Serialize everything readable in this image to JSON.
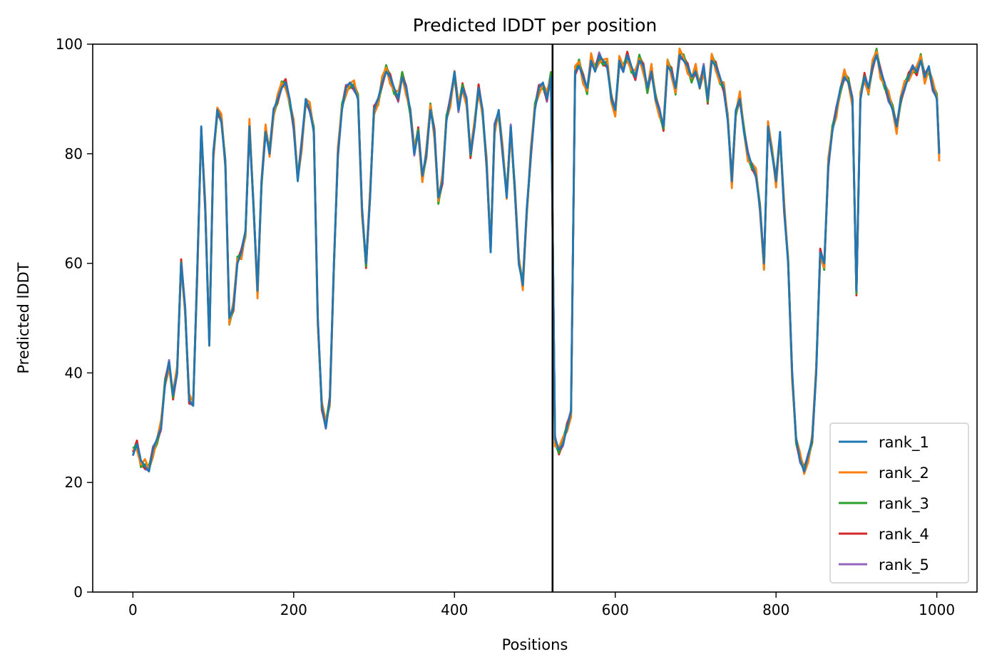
{
  "chart_data": {
    "type": "line",
    "title": "Predicted lDDT per position",
    "xlabel": "Positions",
    "ylabel": "Predicted lDDT",
    "xlim": [
      -50,
      1050
    ],
    "ylim": [
      0,
      100
    ],
    "xticks": [
      0,
      200,
      400,
      600,
      800,
      1000
    ],
    "yticks": [
      0,
      20,
      40,
      60,
      80,
      100
    ],
    "grid": false,
    "legend_position": "lower-right",
    "vertical_line_x": 522,
    "series": [
      {
        "name": "rank_1",
        "color": "#1f77b4",
        "x": [
          0,
          5,
          10,
          15,
          20,
          25,
          30,
          35,
          40,
          45,
          50,
          55,
          60,
          65,
          70,
          75,
          80,
          85,
          90,
          95,
          100,
          105,
          110,
          115,
          120,
          125,
          130,
          135,
          140,
          145,
          150,
          155,
          160,
          165,
          170,
          175,
          180,
          185,
          190,
          195,
          200,
          205,
          210,
          215,
          220,
          225,
          230,
          235,
          240,
          245,
          250,
          255,
          260,
          265,
          270,
          275,
          280,
          285,
          290,
          295,
          300,
          305,
          310,
          315,
          320,
          325,
          330,
          335,
          340,
          345,
          350,
          355,
          360,
          365,
          370,
          375,
          380,
          385,
          390,
          395,
          400,
          405,
          410,
          415,
          420,
          425,
          430,
          435,
          440,
          445,
          450,
          455,
          460,
          465,
          470,
          475,
          480,
          485,
          490,
          495,
          500,
          505,
          510,
          515,
          520,
          525,
          530,
          535,
          540,
          545,
          550,
          555,
          560,
          565,
          570,
          575,
          580,
          585,
          590,
          595,
          600,
          605,
          610,
          615,
          620,
          625,
          630,
          635,
          640,
          645,
          650,
          655,
          660,
          665,
          670,
          675,
          680,
          685,
          690,
          695,
          700,
          705,
          710,
          715,
          720,
          725,
          730,
          735,
          740,
          745,
          750,
          755,
          760,
          765,
          770,
          775,
          780,
          785,
          790,
          795,
          800,
          805,
          810,
          815,
          820,
          825,
          830,
          835,
          840,
          845,
          850,
          855,
          860,
          865,
          870,
          875,
          880,
          885,
          890,
          895,
          900,
          905,
          910,
          915,
          920,
          925,
          930,
          935,
          940,
          945,
          950,
          955,
          960,
          965,
          970,
          975,
          980,
          985,
          990,
          995,
          1000,
          1003
        ],
        "y": [
          25,
          27,
          24,
          23,
          22,
          26,
          28,
          30,
          38,
          42,
          36,
          40,
          60,
          52,
          35,
          34,
          58,
          85,
          70,
          45,
          80,
          88,
          86,
          78,
          50,
          52,
          60,
          62,
          66,
          85,
          70,
          55,
          75,
          84,
          80,
          88,
          90,
          92,
          93,
          90,
          85,
          75,
          82,
          90,
          88,
          84,
          50,
          34,
          30,
          35,
          60,
          80,
          88,
          92,
          93,
          92,
          90,
          70,
          60,
          72,
          88,
          90,
          93,
          95,
          94,
          92,
          90,
          94,
          92,
          88,
          80,
          84,
          76,
          80,
          88,
          84,
          72,
          75,
          86,
          90,
          95,
          88,
          92,
          90,
          80,
          85,
          92,
          88,
          78,
          62,
          85,
          88,
          80,
          72,
          85,
          74,
          60,
          56,
          70,
          80,
          88,
          92,
          93,
          90,
          94,
          28,
          26,
          27,
          30,
          33,
          95,
          96,
          94,
          92,
          97,
          95,
          98,
          97,
          96,
          90,
          88,
          97,
          95,
          98,
          96,
          94,
          97,
          96,
          92,
          95,
          90,
          88,
          85,
          96,
          95,
          92,
          98,
          97,
          96,
          94,
          95,
          92,
          96,
          90,
          97,
          96,
          94,
          92,
          86,
          75,
          88,
          90,
          84,
          80,
          78,
          76,
          70,
          60,
          85,
          80,
          75,
          84,
          70,
          60,
          40,
          28,
          24,
          22,
          25,
          28,
          40,
          62,
          60,
          78,
          84,
          88,
          92,
          94,
          93,
          90,
          55,
          90,
          94,
          92,
          96,
          98,
          95,
          93,
          90,
          88,
          85,
          90,
          92,
          94,
          96,
          95,
          97,
          94,
          96,
          92,
          90,
          80
        ],
        "label_note": ""
      }
    ]
  },
  "legend": {
    "items": [
      {
        "label": "rank_1",
        "color": "#1f77b4"
      },
      {
        "label": "rank_2",
        "color": "#ff7f0e"
      },
      {
        "label": "rank_3",
        "color": "#2ca02c"
      },
      {
        "label": "rank_4",
        "color": "#d62728"
      },
      {
        "label": "rank_5",
        "color": "#9467bd"
      }
    ]
  }
}
